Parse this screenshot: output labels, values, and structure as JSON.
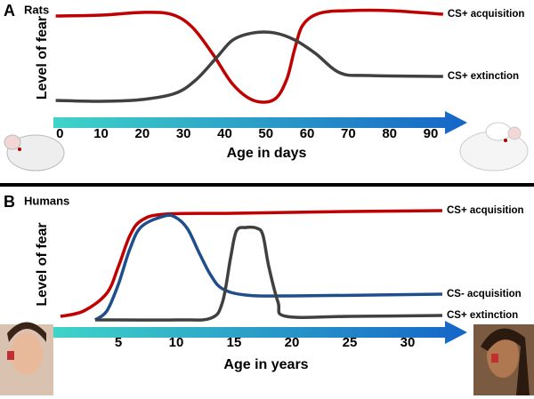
{
  "chart_data": [
    {
      "type": "line",
      "panel_label": "A",
      "title": "Rats",
      "ylabel": "Level of fear",
      "xlabel": "Age in days",
      "xlim": [
        -2,
        98
      ],
      "xticks": [
        0,
        10,
        20,
        30,
        40,
        50,
        60,
        70,
        80,
        90
      ],
      "ylim": [
        0,
        100
      ],
      "series": [
        {
          "name": "CS+ acquisition",
          "color": "#c00000",
          "x": [
            -1,
            10,
            20,
            27,
            32,
            37,
            42,
            47,
            52,
            55,
            57,
            59,
            63,
            70,
            80,
            93
          ],
          "values": [
            92.7,
            93.6,
            96.4,
            94.5,
            81.8,
            54.5,
            22.7,
            6.4,
            7.3,
            27.3,
            59.1,
            83.6,
            95.5,
            98.2,
            98.2,
            94.5
          ]
        },
        {
          "name": "CS+ extinction",
          "color": "#404040",
          "x": [
            -1,
            10,
            20,
            28,
            33,
            38,
            42,
            47,
            52,
            57,
            62,
            68,
            75,
            93
          ],
          "values": [
            6.4,
            5.5,
            7.3,
            13.6,
            27.3,
            50,
            68.2,
            75.5,
            75.5,
            68.2,
            54.5,
            34.5,
            31.8,
            30.9
          ]
        }
      ]
    },
    {
      "type": "line",
      "panel_label": "B",
      "title": "Humans",
      "ylabel": "Level of fear",
      "xlabel": "Age in years",
      "xlim": [
        -1,
        35
      ],
      "xticks": [
        5,
        10,
        15,
        20,
        25,
        30
      ],
      "ylim": [
        0,
        100
      ],
      "series": [
        {
          "name": "CS+ acquisition",
          "color": "#c00000",
          "x": [
            0,
            2,
            4,
            5,
            6,
            7,
            9,
            15,
            25,
            33
          ],
          "values": [
            3.2,
            8,
            24,
            48,
            76,
            89.6,
            95.2,
            96,
            97.6,
            98.4
          ]
        },
        {
          "name": "CS- acquisition",
          "color": "#1f4e8c",
          "x": [
            3,
            4,
            5,
            6,
            7,
            9,
            10,
            11,
            12,
            13,
            14,
            16,
            20,
            33
          ],
          "values": [
            0,
            8,
            32,
            64,
            84,
            93.6,
            92,
            81.6,
            60,
            40,
            28,
            22.4,
            21.6,
            23.2
          ]
        },
        {
          "name": "CS+ extinction",
          "color": "#404040",
          "x": [
            3,
            10,
            13,
            14,
            14.7,
            15.2,
            16,
            17,
            17.5,
            18,
            18.8,
            19.5,
            25,
            33
          ],
          "values": [
            0,
            0,
            1.6,
            16,
            56,
            80,
            83.2,
            82.4,
            76,
            48,
            16,
            3.2,
            3.2,
            4
          ]
        }
      ]
    }
  ]
}
